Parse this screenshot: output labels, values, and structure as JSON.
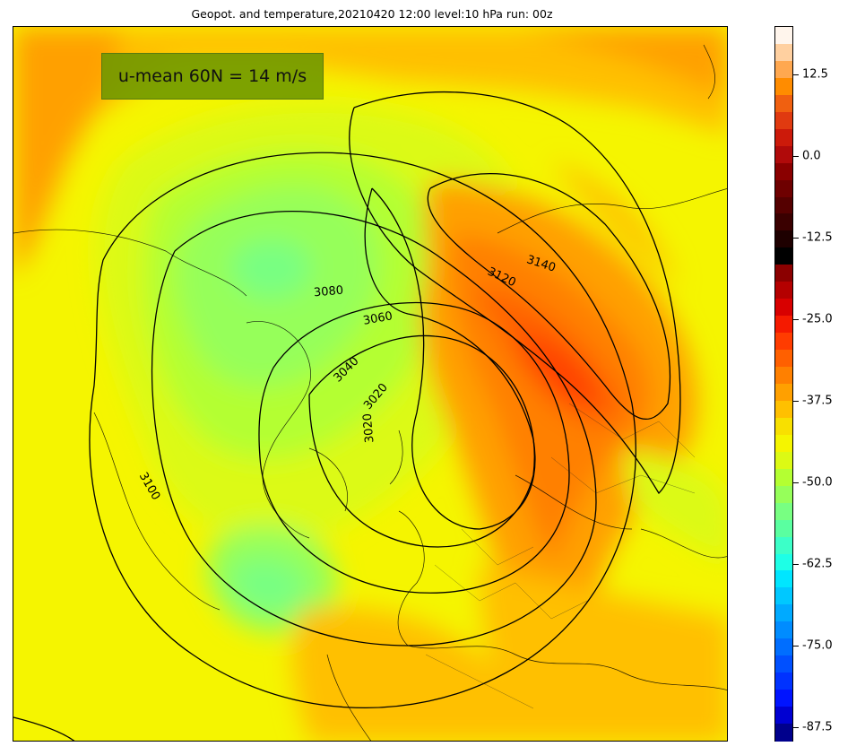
{
  "title": "Geopot. and temperature,20210420 12:00 level:10 hPa run: 00z",
  "umean_text": "u-mean 60N = 14 m/s",
  "contour_labels": [
    "3020",
    "3020",
    "3040",
    "3060",
    "3080",
    "3100",
    "3120",
    "3140"
  ],
  "colorbar": {
    "ticks": [
      "12.5",
      "0.0",
      "-12.5",
      "-25.0",
      "-37.5",
      "-50.0",
      "-62.5",
      "-75.0",
      "-87.5"
    ],
    "colors": [
      "#fff5ec",
      "#ffd0a0",
      "#ffa850",
      "#ff8c00",
      "#f06010",
      "#e03a10",
      "#cc1a0a",
      "#b00a0a",
      "#8a0000",
      "#6e0000",
      "#550000",
      "#3a0000",
      "#1e0000",
      "#000000",
      "#8b0000",
      "#b40000",
      "#d80000",
      "#f51a00",
      "#ff3c00",
      "#ff6000",
      "#ff8000",
      "#ffa000",
      "#ffc000",
      "#f8e000",
      "#f5f500",
      "#dcfa14",
      "#b4ff32",
      "#96ff5a",
      "#78ff82",
      "#5affa0",
      "#3cffc8",
      "#1effe6",
      "#00e6ff",
      "#00c8ff",
      "#00aaff",
      "#008cff",
      "#006eff",
      "#0050ff",
      "#0032ff",
      "#0014ff",
      "#0000d2",
      "#00008c"
    ]
  },
  "map_colors": {
    "yellow": "#f5f500",
    "yellow_green": "#dcfa14",
    "lime": "#b4ff32",
    "light_green": "#96ff5a",
    "cyan_green": "#78ff82",
    "amber": "#ffc000",
    "orange": "#ffa000",
    "dark_orange": "#ff8000",
    "red_orange": "#ff6000",
    "red": "#ff3c00"
  }
}
